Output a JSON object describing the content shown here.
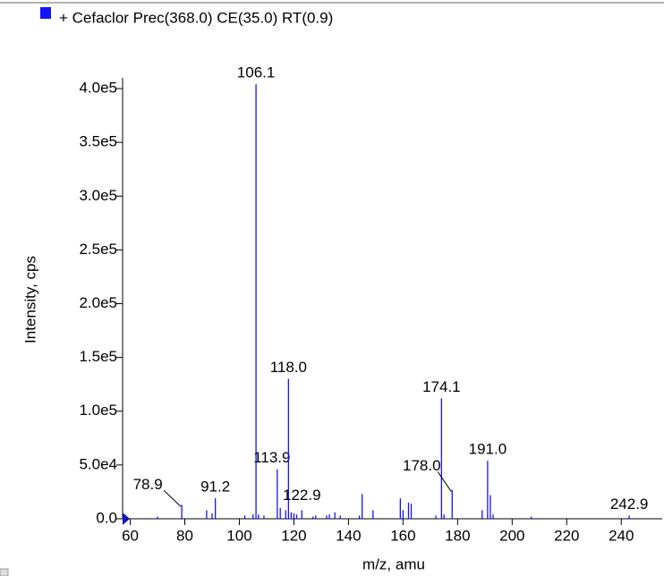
{
  "chart_data": {
    "type": "stem",
    "x_label": "m/z, amu",
    "y_label": "Intensity, cps",
    "series": [
      {
        "name": "+ Cefaclor  Prec(368.0) CE(35.0) RT(0.9)",
        "color": "#1414ff",
        "x": [
          70.0,
          78.9,
          88.0,
          90.0,
          91.2,
          102.0,
          105.0,
          106.1,
          107.0,
          109.0,
          113.9,
          115.0,
          117.0,
          118.0,
          119.0,
          120.0,
          121.0,
          122.9,
          127.0,
          128.0,
          132.0,
          133.0,
          135.0,
          137.0,
          144.0,
          145.0,
          149.0,
          159.0,
          160.0,
          162.0,
          163.0,
          172.0,
          174.1,
          175.0,
          178.0,
          189.0,
          191.0,
          192.0,
          193.0,
          207.0,
          242.9
        ],
        "values": [
          2000,
          13000,
          8000,
          5000,
          19000,
          3000,
          4000,
          404000,
          4000,
          3000,
          46000,
          10000,
          8000,
          130000,
          6000,
          5000,
          4000,
          8000,
          2000,
          3000,
          3000,
          4000,
          6000,
          3000,
          3000,
          23000,
          8000,
          19000,
          8000,
          15000,
          14000,
          3000,
          112000,
          4000,
          27000,
          8000,
          54000,
          22000,
          4000,
          2000,
          3000
        ],
        "peak_labels": [
          null,
          "78.9",
          null,
          null,
          "91.2",
          null,
          null,
          "106.1",
          null,
          null,
          "113.9",
          null,
          null,
          "118.0",
          null,
          null,
          null,
          "122.9",
          null,
          null,
          null,
          null,
          null,
          null,
          null,
          null,
          null,
          null,
          null,
          null,
          null,
          null,
          "174.1",
          null,
          "178.0",
          null,
          "191.0",
          null,
          null,
          null,
          "242.9"
        ]
      }
    ],
    "xlim": [
      57.2,
      255
    ],
    "xticks": [
      60,
      80,
      100,
      120,
      140,
      160,
      180,
      200,
      220,
      240
    ],
    "ylim": [
      0,
      410000
    ],
    "yticks": [
      {
        "value": 0,
        "label": "0.0"
      },
      {
        "value": 50000,
        "label": "5.0e4"
      },
      {
        "value": 100000,
        "label": "1.0e5"
      },
      {
        "value": 150000,
        "label": "1.5e5"
      },
      {
        "value": 200000,
        "label": "2.0e5"
      },
      {
        "value": 250000,
        "label": "2.5e5"
      },
      {
        "value": 300000,
        "label": "3.0e5"
      },
      {
        "value": 350000,
        "label": "3.5e5"
      },
      {
        "value": 400000,
        "label": "4.0e5"
      }
    ]
  }
}
